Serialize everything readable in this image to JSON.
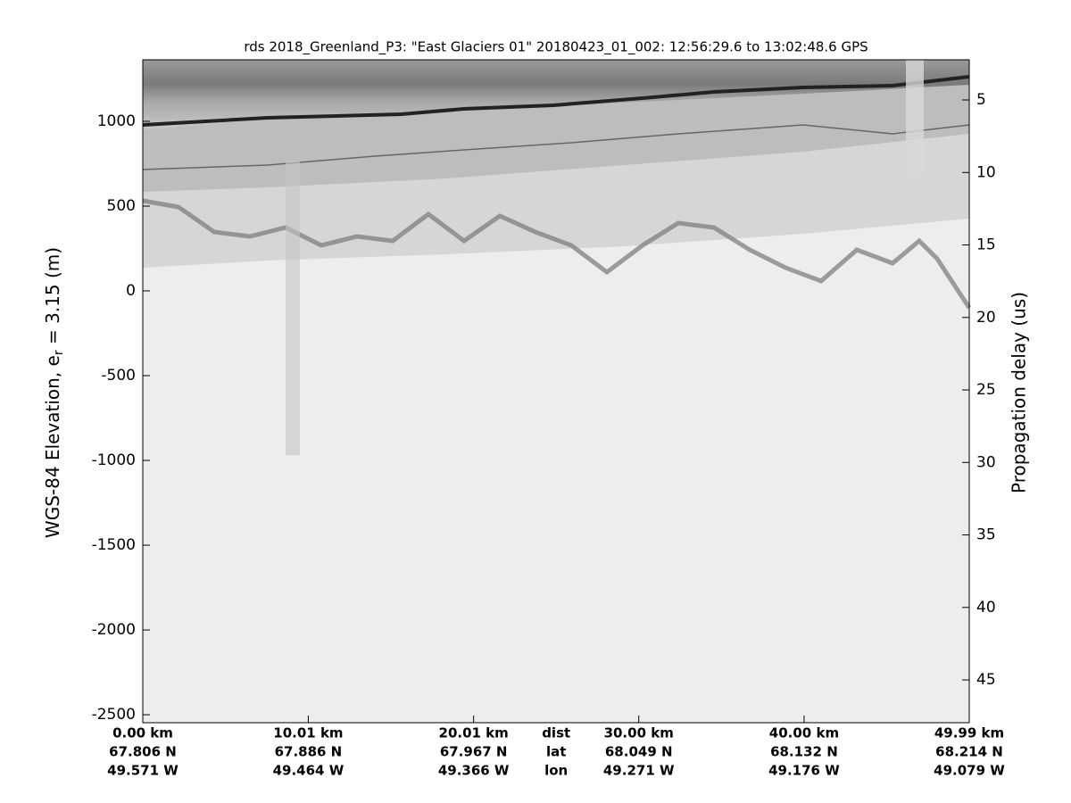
{
  "chart_data": {
    "type": "image",
    "title": "rds 2018_Greenland_P3: \"East Glaciers 01\"  20180423_01_002: 12:56:29.6 to 13:02:48.6 GPS",
    "ylabel": [
      "WGS-84 Elevation, e",
      "r",
      " = 3.15 (m)"
    ],
    "y2label": "Propagation delay (us)",
    "ylim": [
      -2547,
      1363
    ],
    "yticks": [
      -2500,
      -2000,
      -1500,
      -1000,
      -500,
      0,
      500,
      1000
    ],
    "y2lim": [
      47.95,
      2.23
    ],
    "y2ticks": [
      5,
      10,
      15,
      20,
      25,
      30,
      35,
      40,
      45
    ],
    "xlim": [
      0,
      49.99
    ],
    "xticks": [
      {
        "value": 0,
        "label": "0.00 km"
      },
      {
        "value": 10.01,
        "label": "10.01 km"
      },
      {
        "value": 20.01,
        "label": "20.01 km"
      },
      {
        "value": 30.0,
        "label": "30.00 km"
      },
      {
        "value": 40.0,
        "label": "40.00 km"
      },
      {
        "value": 49.99,
        "label": "49.99 km"
      }
    ],
    "lat_labels": [
      "67.806 N",
      "67.886 N",
      "67.967 N",
      "68.049 N",
      "68.132 N",
      "68.214 N"
    ],
    "lon_labels": [
      "49.571 W",
      "49.464 W",
      "49.366 W",
      "49.271 W",
      "49.176 W",
      "49.079 W"
    ],
    "row_headers": [
      "dist",
      "lat",
      "lon"
    ]
  }
}
